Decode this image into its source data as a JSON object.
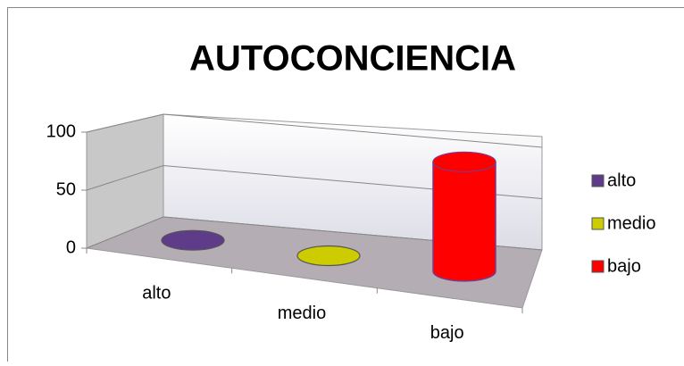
{
  "chart_data": {
    "type": "bar3d",
    "title": "AUTOCONCIENCIA",
    "categories": [
      "alto",
      "medio",
      "bajo"
    ],
    "values": [
      0,
      0,
      100
    ],
    "colors": [
      "#5f3c8a",
      "#cccc00",
      "#ff0000"
    ],
    "ylim": [
      0,
      100
    ],
    "yticks": [
      0,
      50,
      100
    ],
    "grid": true,
    "legend": "right"
  }
}
